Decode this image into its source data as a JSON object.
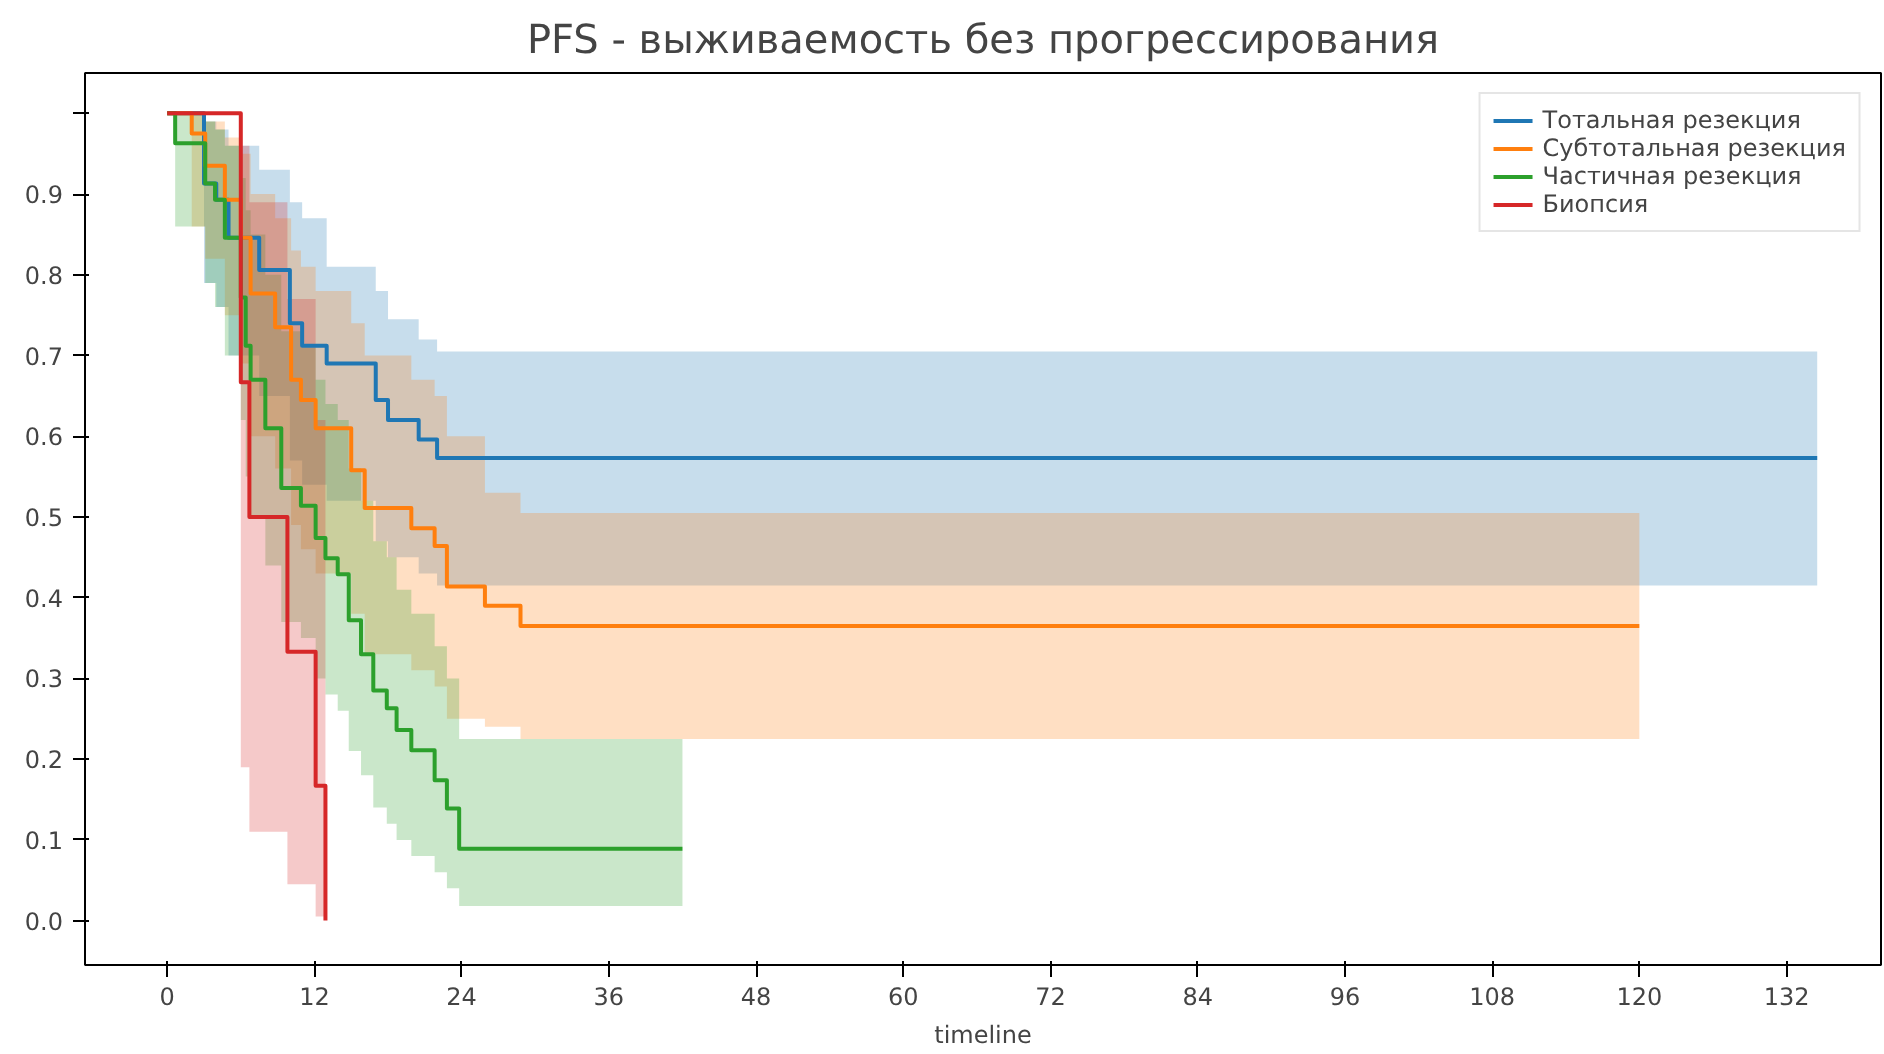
{
  "chart_data": {
    "type": "step",
    "title": "PFS - выживаемость без прогрессирования",
    "xlabel": "timeline",
    "xlim": [
      -6.7,
      139.7
    ],
    "ylim": [
      -0.055,
      1.05
    ],
    "xticks": [
      0,
      12,
      24,
      36,
      48,
      60,
      72,
      84,
      96,
      108,
      120,
      132
    ],
    "yticks": [
      {
        "value": 0.0,
        "label": "0.0"
      },
      {
        "value": 0.1,
        "label": "0.1"
      },
      {
        "value": 0.2,
        "label": "0.2"
      },
      {
        "value": 0.3,
        "label": "0.3"
      },
      {
        "value": 0.4,
        "label": "0.4"
      },
      {
        "value": 0.5,
        "label": "0.5"
      },
      {
        "value": 0.6,
        "label": "0.6"
      },
      {
        "value": 0.7,
        "label": "0.7"
      },
      {
        "value": 0.8,
        "label": "0.8"
      },
      {
        "value": 0.9,
        "label": "0.9"
      },
      {
        "value": 1.0,
        "label": null
      }
    ],
    "grid": false,
    "legend": "top right",
    "series": [
      {
        "name": "Тотальная резекция",
        "color": "#1f77b4",
        "x": [
          0,
          3,
          4,
          5,
          7.5,
          10,
          11,
          13,
          17,
          18,
          20.5,
          22,
          134.5
        ],
        "values": [
          1,
          0.913,
          0.893,
          0.846,
          0.806,
          0.74,
          0.712,
          0.69,
          0.645,
          0.62,
          0.596,
          0.573,
          0.573
        ],
        "lower": [
          1,
          0.79,
          0.76,
          0.7,
          0.65,
          0.57,
          0.54,
          0.52,
          0.47,
          0.45,
          0.43,
          0.415,
          0.415
        ],
        "upper": [
          1,
          0.99,
          0.98,
          0.96,
          0.93,
          0.89,
          0.87,
          0.81,
          0.78,
          0.745,
          0.72,
          0.705,
          0.705
        ]
      },
      {
        "name": "Субтотальная резекция",
        "color": "#ff7f0e",
        "x": [
          0,
          2,
          3.1,
          4.7,
          6,
          6.8,
          8.8,
          10.1,
          10.9,
          12.1,
          15,
          16.1,
          19.9,
          21.8,
          22.8,
          25.9,
          28.8,
          120
        ],
        "values": [
          1,
          0.975,
          0.935,
          0.893,
          0.846,
          0.777,
          0.735,
          0.67,
          0.645,
          0.61,
          0.558,
          0.511,
          0.486,
          0.464,
          0.414,
          0.39,
          0.365,
          0.365
        ],
        "lower": [
          1,
          0.86,
          0.82,
          0.75,
          0.69,
          0.6,
          0.56,
          0.49,
          0.46,
          0.43,
          0.38,
          0.33,
          0.31,
          0.29,
          0.25,
          0.24,
          0.225,
          0.225
        ],
        "upper": [
          1,
          1,
          0.99,
          0.97,
          0.95,
          0.9,
          0.87,
          0.83,
          0.81,
          0.78,
          0.74,
          0.7,
          0.67,
          0.65,
          0.6,
          0.53,
          0.505,
          0.505
        ]
      },
      {
        "name": "Частичная резекция",
        "color": "#2ca02c",
        "x": [
          0,
          0.65,
          3.1,
          3.9,
          4.7,
          6,
          6.4,
          6.8,
          8,
          9.3,
          10.9,
          12.1,
          12.9,
          13.9,
          14.8,
          15.8,
          16.8,
          17.9,
          18.7,
          19.9,
          21.8,
          22.8,
          23.8,
          42
        ],
        "values": [
          1,
          0.963,
          0.913,
          0.893,
          0.846,
          0.772,
          0.712,
          0.67,
          0.61,
          0.536,
          0.514,
          0.474,
          0.449,
          0.429,
          0.372,
          0.33,
          0.285,
          0.263,
          0.236,
          0.211,
          0.174,
          0.139,
          0.089,
          0.089
        ],
        "lower": [
          1,
          0.86,
          0.79,
          0.76,
          0.7,
          0.62,
          0.55,
          0.5,
          0.44,
          0.37,
          0.35,
          0.3,
          0.28,
          0.26,
          0.21,
          0.18,
          0.14,
          0.12,
          0.1,
          0.08,
          0.06,
          0.04,
          0.018,
          0.018
        ],
        "upper": [
          1,
          1,
          0.99,
          0.98,
          0.96,
          0.92,
          0.88,
          0.85,
          0.8,
          0.73,
          0.71,
          0.67,
          0.64,
          0.62,
          0.56,
          0.52,
          0.47,
          0.45,
          0.41,
          0.38,
          0.34,
          0.3,
          0.225,
          0.225
        ]
      },
      {
        "name": "Биопсия",
        "color": "#d62728",
        "x": [
          0,
          6,
          6.7,
          9.8,
          12.1,
          12.9
        ],
        "values": [
          1,
          0.667,
          0.5,
          0.333,
          0.167,
          0
        ],
        "lower": [
          1,
          0.19,
          0.11,
          0.045,
          0.005,
          0
        ],
        "upper": [
          1,
          0.96,
          0.89,
          0.77,
          0.62,
          0.62
        ]
      }
    ]
  }
}
